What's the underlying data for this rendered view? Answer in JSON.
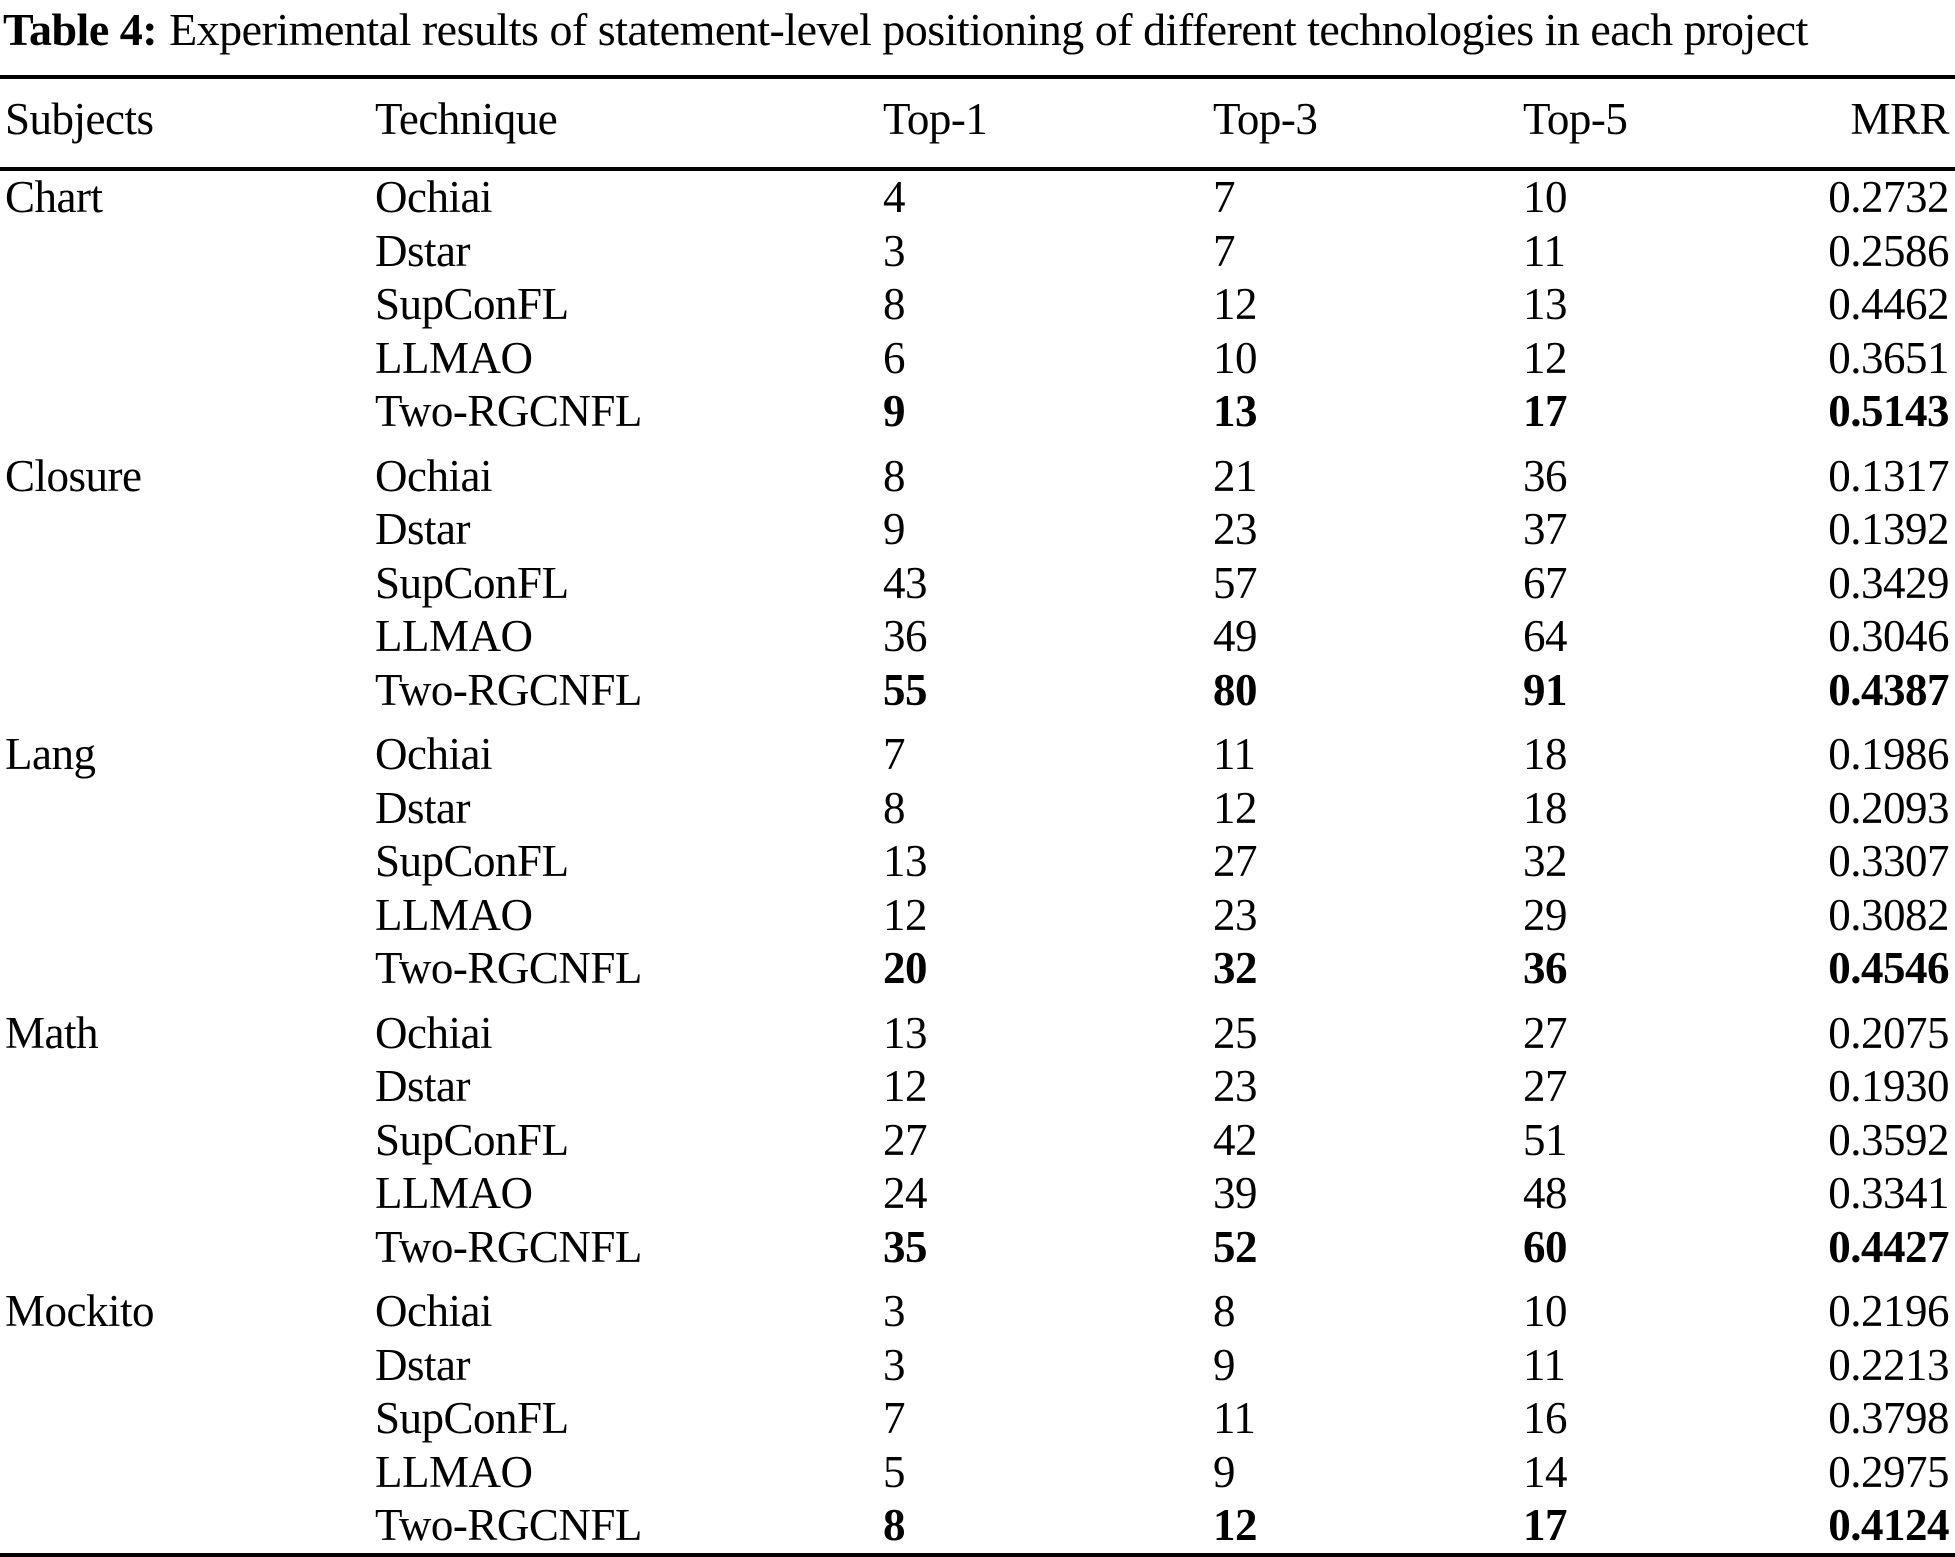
{
  "caption": {
    "label": "Table 4:",
    "text": "Experimental results of statement-level positioning of different technologies in each project"
  },
  "table": {
    "columns": [
      "Subjects",
      "Technique",
      "Top-1",
      "Top-3",
      "Top-5",
      "MRR"
    ],
    "groups": [
      {
        "subject": "Chart",
        "rows": [
          {
            "technique": "Ochiai",
            "top1": "4",
            "top3": "7",
            "top5": "10",
            "mrr": "0.2732",
            "best": false
          },
          {
            "technique": "Dstar",
            "top1": "3",
            "top3": "7",
            "top5": "11",
            "mrr": "0.2586",
            "best": false
          },
          {
            "technique": "SupConFL",
            "top1": "8",
            "top3": "12",
            "top5": "13",
            "mrr": "0.4462",
            "best": false
          },
          {
            "technique": "LLMAO",
            "top1": "6",
            "top3": "10",
            "top5": "12",
            "mrr": "0.3651",
            "best": false
          },
          {
            "technique": "Two-RGCNFL",
            "top1": "9",
            "top3": "13",
            "top5": "17",
            "mrr": "0.5143",
            "best": true
          }
        ]
      },
      {
        "subject": "Closure",
        "rows": [
          {
            "technique": "Ochiai",
            "top1": "8",
            "top3": "21",
            "top5": "36",
            "mrr": "0.1317",
            "best": false
          },
          {
            "technique": "Dstar",
            "top1": "9",
            "top3": "23",
            "top5": "37",
            "mrr": "0.1392",
            "best": false
          },
          {
            "technique": "SupConFL",
            "top1": "43",
            "top3": "57",
            "top5": "67",
            "mrr": "0.3429",
            "best": false
          },
          {
            "technique": "LLMAO",
            "top1": "36",
            "top3": "49",
            "top5": "64",
            "mrr": "0.3046",
            "best": false
          },
          {
            "technique": "Two-RGCNFL",
            "top1": "55",
            "top3": "80",
            "top5": "91",
            "mrr": "0.4387",
            "best": true
          }
        ]
      },
      {
        "subject": "Lang",
        "rows": [
          {
            "technique": "Ochiai",
            "top1": "7",
            "top3": "11",
            "top5": "18",
            "mrr": "0.1986",
            "best": false
          },
          {
            "technique": "Dstar",
            "top1": "8",
            "top3": "12",
            "top5": "18",
            "mrr": "0.2093",
            "best": false
          },
          {
            "technique": "SupConFL",
            "top1": "13",
            "top3": "27",
            "top5": "32",
            "mrr": "0.3307",
            "best": false
          },
          {
            "technique": "LLMAO",
            "top1": "12",
            "top3": "23",
            "top5": "29",
            "mrr": "0.3082",
            "best": false
          },
          {
            "technique": "Two-RGCNFL",
            "top1": "20",
            "top3": "32",
            "top5": "36",
            "mrr": "0.4546",
            "best": true
          }
        ]
      },
      {
        "subject": "Math",
        "rows": [
          {
            "technique": "Ochiai",
            "top1": "13",
            "top3": "25",
            "top5": "27",
            "mrr": "0.2075",
            "best": false
          },
          {
            "technique": "Dstar",
            "top1": "12",
            "top3": "23",
            "top5": "27",
            "mrr": "0.1930",
            "best": false
          },
          {
            "technique": "SupConFL",
            "top1": "27",
            "top3": "42",
            "top5": "51",
            "mrr": "0.3592",
            "best": false
          },
          {
            "technique": "LLMAO",
            "top1": "24",
            "top3": "39",
            "top5": "48",
            "mrr": "0.3341",
            "best": false
          },
          {
            "technique": "Two-RGCNFL",
            "top1": "35",
            "top3": "52",
            "top5": "60",
            "mrr": "0.4427",
            "best": true
          }
        ]
      },
      {
        "subject": "Mockito",
        "rows": [
          {
            "technique": "Ochiai",
            "top1": "3",
            "top3": "8",
            "top5": "10",
            "mrr": "0.2196",
            "best": false
          },
          {
            "technique": "Dstar",
            "top1": "3",
            "top3": "9",
            "top5": "11",
            "mrr": "0.2213",
            "best": false
          },
          {
            "technique": "SupConFL",
            "top1": "7",
            "top3": "11",
            "top5": "16",
            "mrr": "0.3798",
            "best": false
          },
          {
            "technique": "LLMAO",
            "top1": "5",
            "top3": "9",
            "top5": "14",
            "mrr": "0.2975",
            "best": false
          },
          {
            "technique": "Two-RGCNFL",
            "top1": "8",
            "top3": "12",
            "top5": "17",
            "mrr": "0.4124",
            "best": true
          }
        ]
      }
    ]
  },
  "chart_data": {
    "type": "table",
    "title": "Table 4: Experimental results of statement-level positioning of different technologies in each project",
    "columns": [
      "Subjects",
      "Technique",
      "Top-1",
      "Top-3",
      "Top-5",
      "MRR"
    ]
  }
}
